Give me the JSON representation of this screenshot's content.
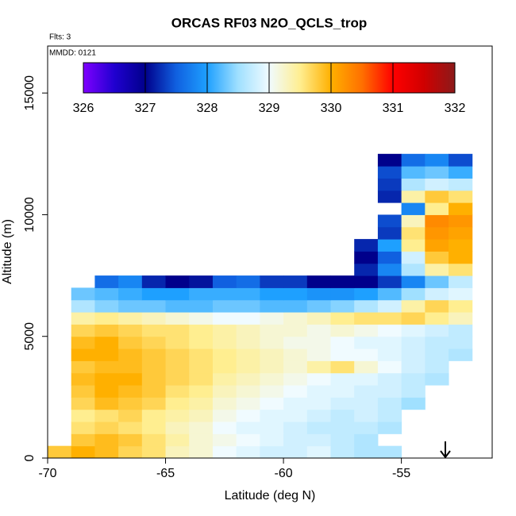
{
  "chart_data": {
    "type": "heatmap",
    "title": "ORCAS RF03 N2O_QCLS_trop",
    "annotations": [
      "Flts: 3",
      "MMDD: 0121"
    ],
    "xlabel": "Latitude (deg N)",
    "ylabel": "Altitude (m)",
    "xlim": [
      -70,
      -51.15
    ],
    "xticks": [
      -70,
      -65,
      -60,
      -55
    ],
    "ylim": [
      0,
      16930
    ],
    "yticks": [
      0,
      5000,
      10000,
      15000
    ],
    "zlim": [
      326,
      332
    ],
    "zticks": [
      326,
      327,
      328,
      329,
      330,
      331,
      332
    ],
    "colorscale": [
      "#7f00ff",
      "#2000d0",
      "#00008b",
      "#1060e0",
      "#1ea0ff",
      "#a0e0ff",
      "#f0fbff",
      "#ffee90",
      "#ffb000",
      "#ff7000",
      "#ff0000",
      "#d00000",
      "#8b1a1a"
    ],
    "x": [
      -69.5,
      -68.5,
      -67.5,
      -66.5,
      -65.5,
      -64.5,
      -63.5,
      -62.5,
      -61.5,
      -60.5,
      -59.5,
      -58.5,
      -57.5,
      -56.5,
      -55.5,
      -54.5,
      -53.5,
      -52.5
    ],
    "y": [
      250,
      750,
      1250,
      1750,
      2250,
      2750,
      3250,
      3750,
      4250,
      4750,
      5250,
      5750,
      6250,
      6750,
      7250,
      7750,
      8250,
      8750,
      9250,
      9750,
      10250,
      10750,
      11250,
      11750,
      12250
    ],
    "values": [
      [
        329.8,
        330,
        329.9,
        329.7,
        329.6,
        329.3,
        329.2,
        329,
        328.9,
        328.8,
        328.8,
        328.9,
        328.7,
        328.6,
        328.6,
        null,
        null,
        null
      ],
      [
        null,
        329.8,
        329.9,
        329.8,
        329.6,
        329.4,
        329.2,
        329.1,
        329,
        328.9,
        328.8,
        328.8,
        328.7,
        328.6,
        null,
        null,
        null,
        null
      ],
      [
        null,
        329.6,
        329.7,
        329.6,
        329.5,
        329.3,
        329.2,
        329,
        328.9,
        328.9,
        328.8,
        328.7,
        328.7,
        328.7,
        328.6,
        null,
        null,
        null
      ],
      [
        null,
        329.5,
        329.6,
        329.7,
        329.5,
        329.4,
        329.3,
        329.1,
        329,
        328.9,
        328.9,
        328.8,
        328.7,
        328.8,
        328.7,
        null,
        null,
        null
      ],
      [
        null,
        329.7,
        329.9,
        329.8,
        329.7,
        329.5,
        329.4,
        329.2,
        329.1,
        329,
        328.9,
        328.9,
        328.8,
        328.8,
        328.7,
        328.5,
        null,
        null
      ],
      [
        null,
        329.8,
        330,
        329.9,
        329.8,
        329.6,
        329.5,
        329.3,
        329.2,
        329.1,
        329,
        328.9,
        328.9,
        328.8,
        328.8,
        328.7,
        null,
        null
      ],
      [
        null,
        329.9,
        330,
        330,
        329.8,
        329.7,
        329.6,
        329.4,
        329.3,
        329.2,
        329.1,
        329,
        328.9,
        328.9,
        328.8,
        328.7,
        328.6,
        null
      ],
      [
        null,
        329.8,
        329.9,
        329.9,
        329.8,
        329.7,
        329.6,
        329.5,
        329.4,
        329.3,
        329.2,
        329.4,
        329.6,
        329.2,
        329,
        328.8,
        328.7,
        null
      ],
      [
        null,
        330,
        330,
        329.9,
        329.8,
        329.7,
        329.6,
        329.5,
        329.4,
        329.3,
        329.2,
        329.1,
        329,
        329,
        328.9,
        328.8,
        328.7,
        328.6
      ],
      [
        null,
        329.9,
        330,
        329.8,
        329.7,
        329.6,
        329.5,
        329.4,
        329.3,
        329.2,
        329.1,
        329.1,
        329,
        328.9,
        328.9,
        328.8,
        328.7,
        328.7
      ],
      [
        null,
        329.7,
        329.8,
        329.7,
        329.6,
        329.6,
        329.5,
        329.4,
        329.3,
        329.2,
        329.2,
        329.1,
        329.2,
        329.1,
        329,
        328.9,
        328.8,
        328.7
      ],
      [
        null,
        329.4,
        329.5,
        329.4,
        329.3,
        329.2,
        329.1,
        329,
        329,
        329.1,
        329.2,
        329.3,
        329.5,
        329.6,
        329.6,
        329.7,
        329.5,
        329.3
      ],
      [
        null,
        328.6,
        328.4,
        328.3,
        328.3,
        328.2,
        328.2,
        328.3,
        328.3,
        328.2,
        328.2,
        328.3,
        328.4,
        328.6,
        328.8,
        329.4,
        329.7,
        329.5
      ],
      [
        null,
        328.3,
        328.2,
        328.1,
        328,
        328,
        328.1,
        328.1,
        328.1,
        328,
        328,
        327.9,
        327.9,
        328,
        328.2,
        328.5,
        328.8,
        328.9
      ],
      [
        null,
        null,
        327.6,
        327.8,
        327.2,
        327,
        327.1,
        327.5,
        327.6,
        327.3,
        327.3,
        327,
        327,
        327,
        327.3,
        327.8,
        328.3,
        328.7
      ],
      [
        null,
        null,
        null,
        null,
        null,
        null,
        null,
        null,
        null,
        null,
        null,
        null,
        null,
        327.2,
        327.8,
        328.6,
        329.4,
        329.6
      ],
      [
        null,
        null,
        null,
        null,
        null,
        null,
        null,
        null,
        null,
        null,
        null,
        null,
        null,
        327,
        327.5,
        328.8,
        329.8,
        330
      ],
      [
        null,
        null,
        null,
        null,
        null,
        null,
        null,
        null,
        null,
        null,
        null,
        null,
        null,
        327.2,
        328,
        329.5,
        330.1,
        330
      ],
      [
        null,
        null,
        null,
        null,
        null,
        null,
        null,
        null,
        null,
        null,
        null,
        null,
        null,
        null,
        327.3,
        329.6,
        330.2,
        330.1
      ],
      [
        null,
        null,
        null,
        null,
        null,
        null,
        null,
        null,
        null,
        null,
        null,
        null,
        null,
        null,
        327.4,
        329.3,
        330.3,
        330.2
      ],
      [
        null,
        null,
        null,
        null,
        null,
        null,
        null,
        null,
        null,
        null,
        null,
        null,
        null,
        null,
        null,
        327.8,
        329.5,
        330
      ],
      [
        null,
        null,
        null,
        null,
        null,
        null,
        null,
        null,
        null,
        null,
        null,
        null,
        null,
        null,
        327.2,
        329.4,
        329.8,
        329.6
      ],
      [
        null,
        null,
        null,
        null,
        null,
        null,
        null,
        null,
        null,
        null,
        null,
        null,
        null,
        null,
        327.3,
        328.6,
        328.8,
        328.7
      ],
      [
        null,
        null,
        null,
        null,
        null,
        null,
        null,
        null,
        null,
        null,
        null,
        null,
        null,
        null,
        327.4,
        328.2,
        328.3,
        328.1
      ],
      [
        null,
        null,
        null,
        null,
        null,
        null,
        null,
        null,
        null,
        null,
        null,
        null,
        null,
        null,
        327,
        327.6,
        327.8,
        327.4
      ]
    ]
  }
}
